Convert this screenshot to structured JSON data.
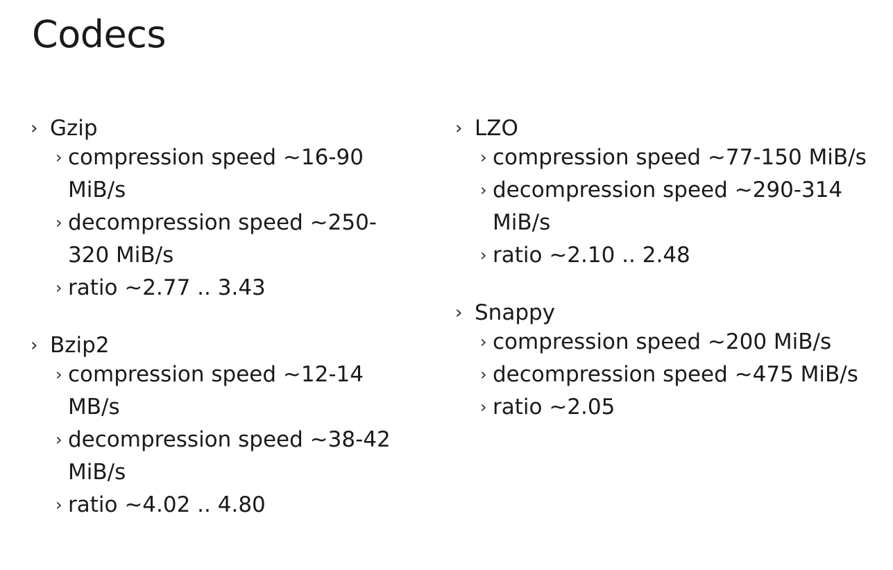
{
  "slide": {
    "title": "Codecs"
  },
  "chevron_glyph": "›",
  "columns": [
    {
      "codecs": [
        {
          "name": "Gzip",
          "props": [
            "compression speed ~16-90 MiB/s",
            "decompression speed ~250-320 MiB/s",
            "ratio ~2.77 .. 3.43"
          ]
        },
        {
          "name": "Bzip2",
          "props": [
            "compression speed ~12-14 MB/s",
            "decompression speed ~38-42 MiB/s",
            "ratio ~4.02 .. 4.80"
          ]
        }
      ]
    },
    {
      "codecs": [
        {
          "name": "LZO",
          "props": [
            "compression speed ~77-150 MiB/s",
            "decompression speed ~290-314 MiB/s",
            "ratio ~2.10 .. 2.48"
          ]
        },
        {
          "name": "Snappy",
          "props": [
            "compression speed ~200 MiB/s",
            "decompression speed ~475 MiB/s",
            "ratio ~2.05"
          ]
        }
      ]
    }
  ]
}
